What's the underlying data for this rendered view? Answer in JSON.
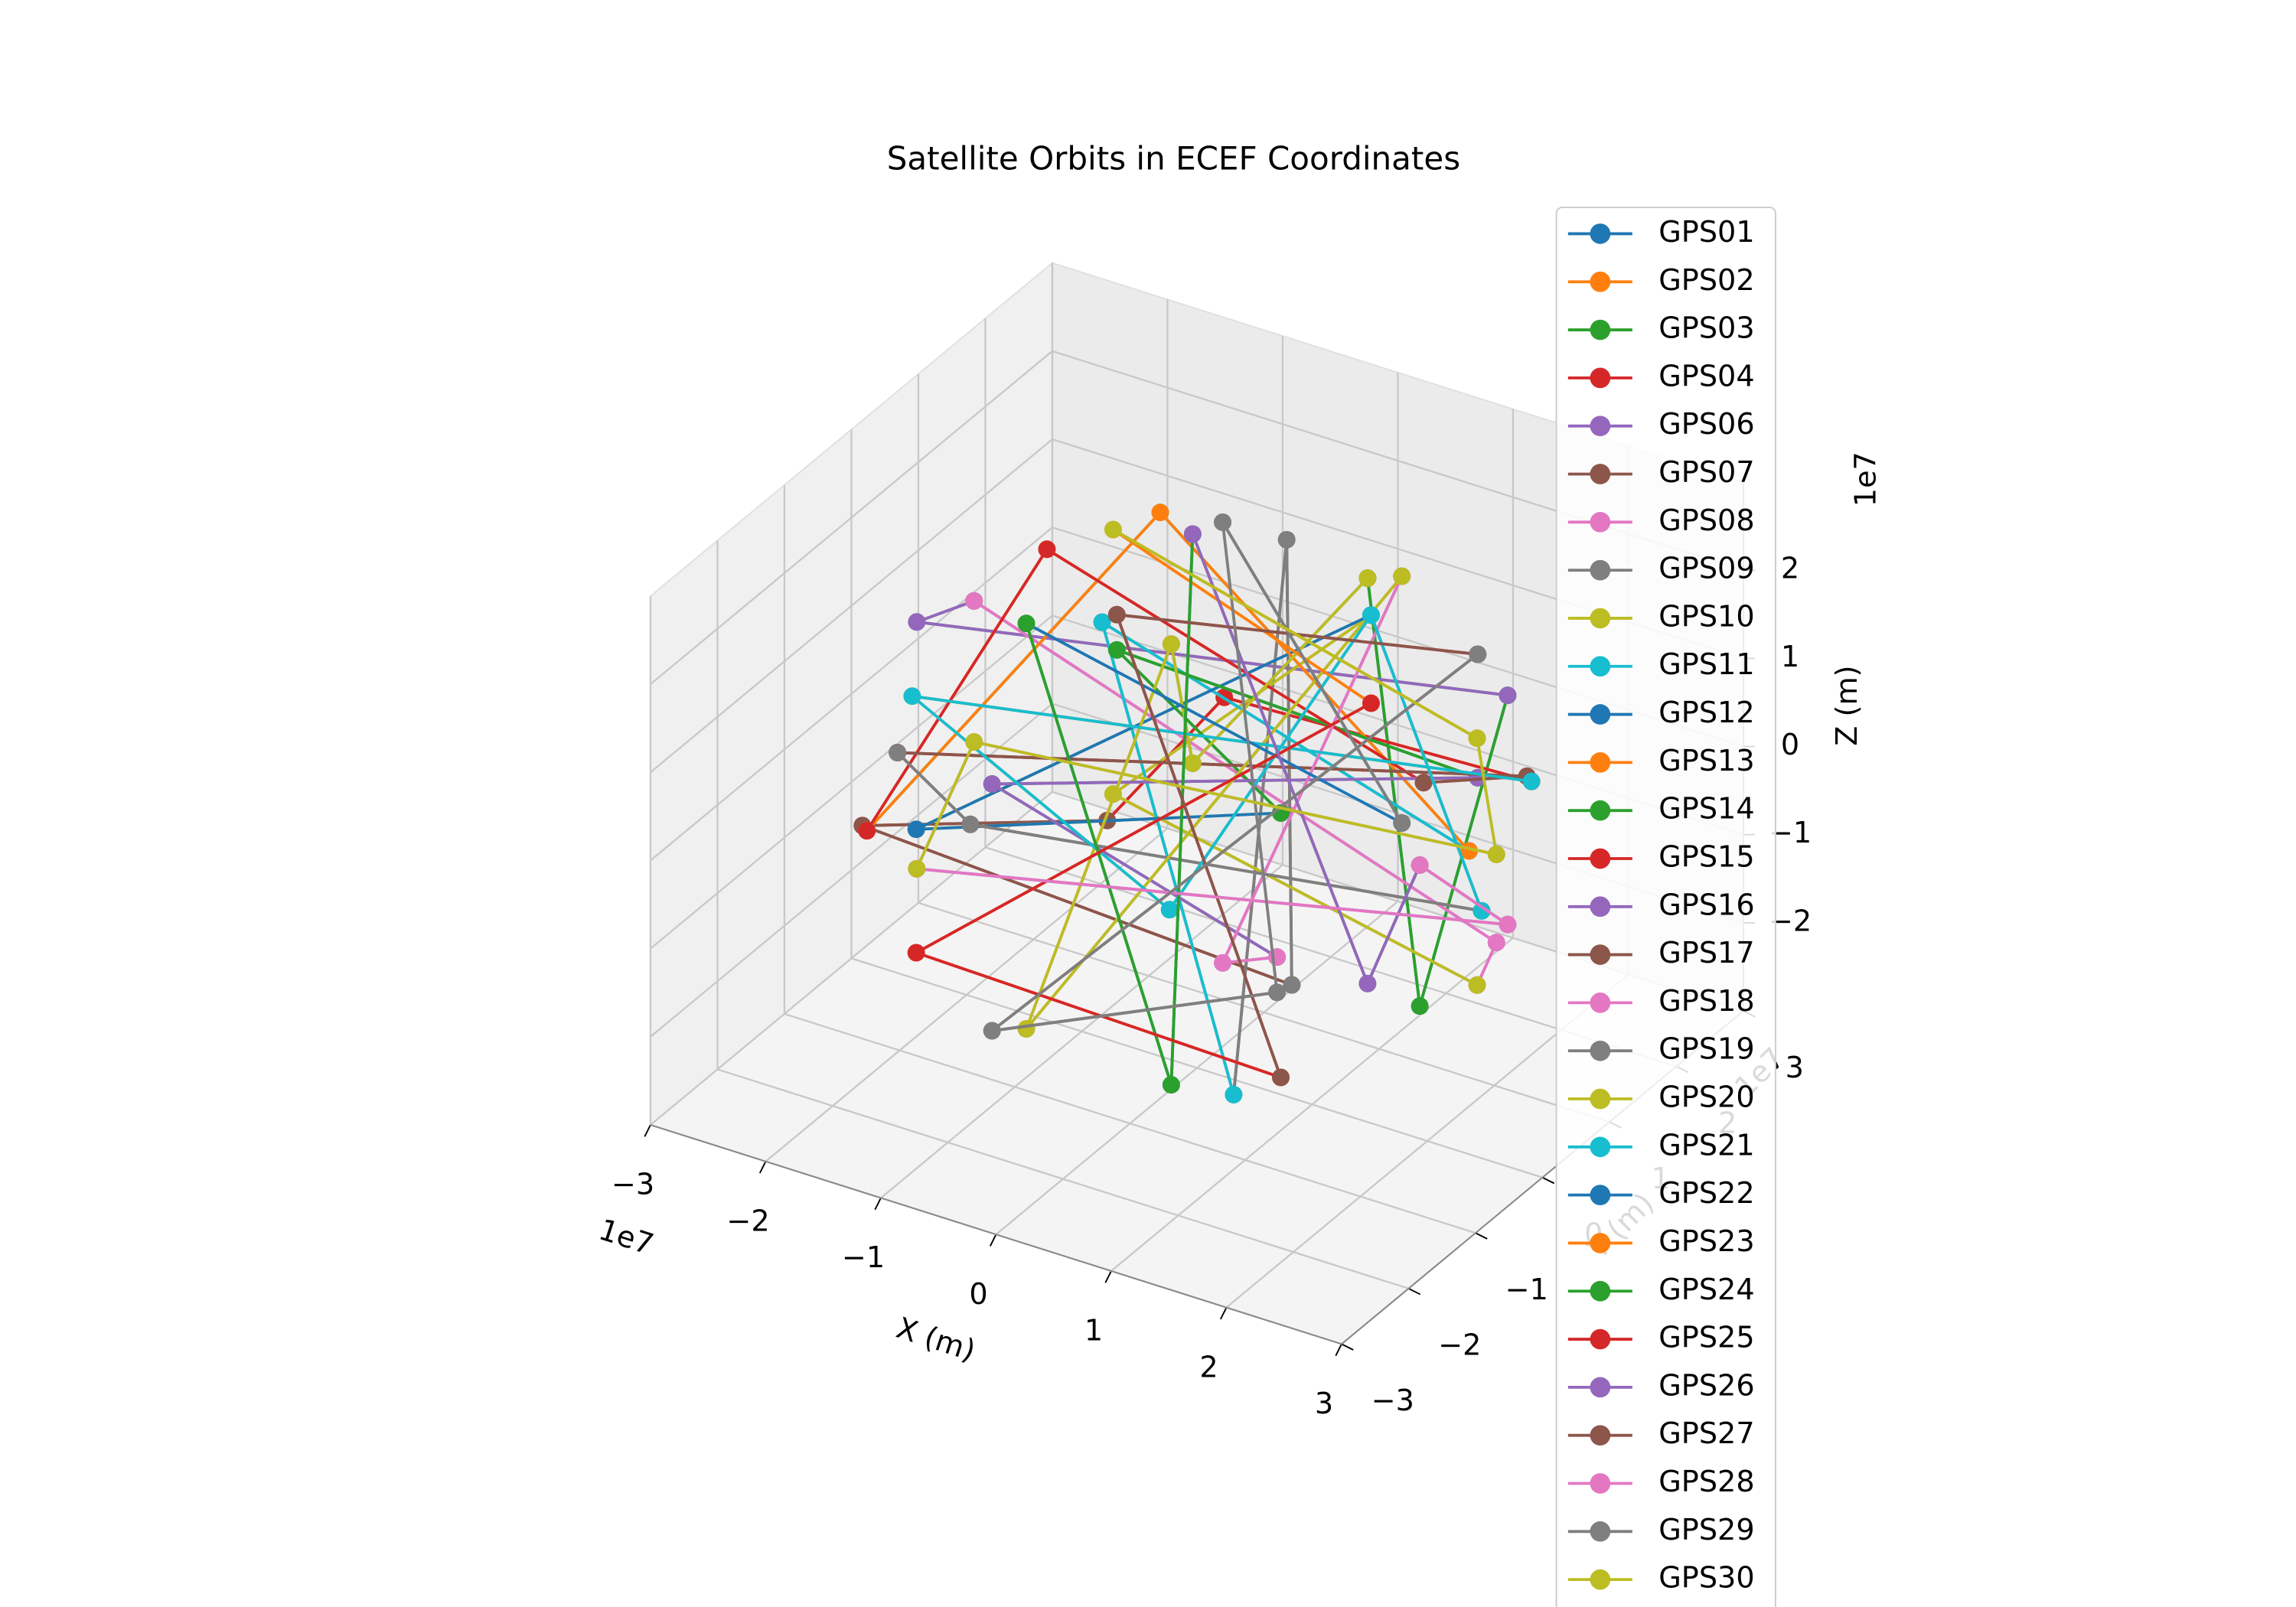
{
  "chart_data": {
    "type": "line3d",
    "title": "Satellite Orbits in ECEF Coordinates",
    "x_label": "X (m)",
    "y_label": "Y (m)",
    "z_label": "Z (m)",
    "x_offset_label": "1e7",
    "y_offset_label": "1e7",
    "z_offset_label": "1e7",
    "xlim": [
      -30000000.0,
      30000000.0
    ],
    "ylim": [
      -30000000.0,
      30000000.0
    ],
    "zlim": [
      -30000000.0,
      30000000.0
    ],
    "xticks": [
      {
        "value": -30000000.0,
        "label": "−3"
      },
      {
        "value": -20000000.0,
        "label": "−2"
      },
      {
        "value": -10000000.0,
        "label": "−1"
      },
      {
        "value": 0,
        "label": "0"
      },
      {
        "value": 10000000.0,
        "label": "1"
      },
      {
        "value": 20000000.0,
        "label": "2"
      },
      {
        "value": 30000000.0,
        "label": "3"
      }
    ],
    "yticks": [
      {
        "value": -30000000.0,
        "label": "−3"
      },
      {
        "value": -20000000.0,
        "label": "−2"
      },
      {
        "value": -10000000.0,
        "label": "−1"
      },
      {
        "value": 0,
        "label": "0"
      },
      {
        "value": 10000000.0,
        "label": "1"
      },
      {
        "value": 20000000.0,
        "label": "2"
      },
      {
        "value": 30000000.0,
        "label": "3"
      }
    ],
    "zticks": [
      {
        "value": -20000000.0,
        "label": "−2"
      },
      {
        "value": -10000000.0,
        "label": "−1"
      },
      {
        "value": 0,
        "label": "0"
      },
      {
        "value": 10000000.0,
        "label": "1"
      },
      {
        "value": 20000000.0,
        "label": "2"
      }
    ],
    "grid": true,
    "series": [
      {
        "name": "GPS01",
        "color": "#1f77b4",
        "x": [
          20000000.0,
          24000000.0,
          9000000.0,
          -12000000.0,
          3000000.0
        ],
        "y": [
          12000000.0,
          -8000000.0,
          10000000.0,
          20000000.0,
          -9000000.0
        ],
        "z": [
          13000000.0,
          -8000000.0,
          23000000.0,
          -13000000.0,
          25000000.0
        ]
      },
      {
        "name": "GPS02",
        "color": "#ff7f0e",
        "x": [
          5000000.0,
          -11000000.0,
          18000000.0,
          -16000000.0,
          11000000.0
        ],
        "y": [
          -22000000.0,
          23000000.0,
          19000000.0,
          -15000000.0,
          -23000000.0
        ],
        "z": [
          14000000.0,
          -7000000.0,
          -2000000.0,
          15000000.0,
          7000000.0
        ]
      },
      {
        "name": "GPS03",
        "color": "#2ca02c",
        "x": [
          -24000000.0,
          -22000000.0,
          20000000.0,
          24000000.0,
          9000000.0
        ],
        "y": [
          8000000.0,
          -4000000.0,
          12000000.0,
          -8000000.0,
          10000000.0
        ],
        "z": [
          8000000.0,
          14000000.0,
          13000000.0,
          -8000000.0,
          23000000.0
        ]
      },
      {
        "name": "GPS04",
        "color": "#d62728",
        "x": [
          3000000.0,
          -18000000.0,
          5000000.0,
          -11000000.0,
          18000000.0
        ],
        "y": [
          9000000.0,
          -19000000.0,
          -22000000.0,
          23000000.0,
          19000000.0
        ],
        "z": [
          -25000000.0,
          2000000.0,
          14000000.0,
          -7000000.0,
          -2000000.0
        ]
      },
      {
        "name": "GPS06",
        "color": "#9467bd",
        "x": [
          22000000.0,
          26000000.0,
          -24000000.0,
          -22000000.0,
          20000000.0
        ],
        "y": [
          4000000.0,
          0,
          8000000.0,
          -4000000.0,
          12000000.0
        ],
        "z": [
          -14000000.0,
          -5000000.0,
          8000000.0,
          14000000.0,
          13000000.0
        ]
      },
      {
        "name": "GPS07",
        "color": "#8c564b",
        "x": [
          9000000.0,
          -5000000.0,
          3000000.0,
          -18000000.0,
          5000000.0
        ],
        "y": [
          -10000000.0,
          22000000.0,
          9000000.0,
          -19000000.0,
          -22000000.0
        ],
        "z": [
          -23000000.0,
          14000000.0,
          -25000000.0,
          2000000.0,
          14000000.0
        ]
      },
      {
        "name": "GPS08",
        "color": "#e377c2",
        "x": [
          0,
          -16000000.0,
          22000000.0,
          26000000.0,
          -24000000.0
        ],
        "y": [
          26000000.0,
          15000000.0,
          4000000.0,
          0,
          8000000.0
        ],
        "z": [
          5000000.0,
          -15000000.0,
          -14000000.0,
          -5000000.0,
          8000000.0
        ]
      },
      {
        "name": "GPS09",
        "color": "#7f7f7f",
        "x": [
          12000000.0,
          -3000000.0,
          9000000.0,
          -5000000.0,
          3000000.0
        ],
        "y": [
          20000000.0,
          -9000000.0,
          -10000000.0,
          22000000.0,
          9000000.0
        ],
        "z": [
          -13000000.0,
          25000000.0,
          -23000000.0,
          14000000.0,
          -25000000.0
        ]
      },
      {
        "name": "GPS10",
        "color": "#bcbd22",
        "x": [
          16000000.0,
          -11000000.0,
          0,
          -16000000.0,
          22000000.0
        ],
        "y": [
          -15000000.0,
          -23000000.0,
          26000000.0,
          15000000.0,
          4000000.0
        ],
        "z": [
          15000000.0,
          7000000.0,
          5000000.0,
          -15000000.0,
          -14000000.0
        ]
      },
      {
        "name": "GPS11",
        "color": "#17becf",
        "x": [
          -24000000.0,
          -9000000.0,
          12000000.0,
          -3000000.0,
          9000000.0
        ],
        "y": [
          -8000000.0,
          10000000.0,
          20000000.0,
          -9000000.0,
          -10000000.0
        ],
        "z": [
          -8000000.0,
          23000000.0,
          -13000000.0,
          25000000.0,
          -23000000.0
        ]
      },
      {
        "name": "GPS12",
        "color": "#1f77b4",
        "x": [
          11000000.0,
          -18000000.0,
          16000000.0,
          -11000000.0,
          0
        ],
        "y": [
          23000000.0,
          19000000.0,
          -15000000.0,
          -23000000.0,
          26000000.0
        ],
        "z": [
          -7000000.0,
          -2000000.0,
          15000000.0,
          7000000.0,
          5000000.0
        ]
      },
      {
        "name": "GPS13",
        "color": "#ff7f0e",
        "x": [
          22000000.0,
          -20000000.0,
          -24000000.0,
          -9000000.0,
          12000000.0
        ],
        "y": [
          -4000000.0,
          12000000.0,
          -8000000.0,
          10000000.0,
          20000000.0
        ],
        "z": [
          14000000.0,
          13000000.0,
          -8000000.0,
          23000000.0,
          -13000000.0
        ]
      },
      {
        "name": "GPS14",
        "color": "#2ca02c",
        "x": [
          18000000.0,
          -5000000.0,
          11000000.0,
          -18000000.0,
          16000000.0
        ],
        "y": [
          -19000000.0,
          -22000000.0,
          23000000.0,
          19000000.0,
          -15000000.0
        ],
        "z": [
          2000000.0,
          14000000.0,
          -7000000.0,
          -2000000.0,
          15000000.0
        ]
      },
      {
        "name": "GPS15",
        "color": "#d62728",
        "x": [
          -26000000.0,
          24000000.0,
          22000000.0,
          -20000000.0,
          -24000000.0
        ],
        "y": [
          0,
          8000000.0,
          -4000000.0,
          12000000.0,
          -8000000.0
        ],
        "z": [
          -5000000.0,
          8000000.0,
          14000000.0,
          13000000.0,
          -8000000.0
        ]
      },
      {
        "name": "GPS16",
        "color": "#9467bd",
        "x": [
          5000000.0,
          -3000000.0,
          18000000.0,
          -5000000.0,
          11000000.0
        ],
        "y": [
          22000000.0,
          9000000.0,
          -19000000.0,
          -22000000.0,
          23000000.0
        ],
        "z": [
          14000000.0,
          -25000000.0,
          2000000.0,
          14000000.0,
          -7000000.0
        ]
      },
      {
        "name": "GPS17",
        "color": "#8c564b",
        "x": [
          16000000.0,
          -22000000.0,
          -26000000.0,
          24000000.0,
          22000000.0
        ],
        "y": [
          15000000.0,
          4000000.0,
          0,
          8000000.0,
          -4000000.0
        ],
        "z": [
          -15000000.0,
          -14000000.0,
          -5000000.0,
          8000000.0,
          14000000.0
        ]
      },
      {
        "name": "GPS18",
        "color": "#e377c2",
        "x": [
          3000000.0,
          -9000000.0,
          5000000.0,
          -3000000.0,
          18000000.0
        ],
        "y": [
          -9000000.0,
          -10000000.0,
          22000000.0,
          9000000.0,
          -19000000.0
        ],
        "z": [
          25000000.0,
          -23000000.0,
          14000000.0,
          -25000000.0,
          2000000.0
        ]
      },
      {
        "name": "GPS19",
        "color": "#7f7f7f",
        "x": [
          11000000.0,
          0,
          16000000.0,
          -22000000.0,
          -26000000.0
        ],
        "y": [
          -23000000.0,
          26000000.0,
          15000000.0,
          4000000.0,
          0
        ],
        "z": [
          7000000.0,
          5000000.0,
          -15000000.0,
          -14000000.0,
          -5000000.0
        ]
      },
      {
        "name": "GPS20",
        "color": "#bcbd22",
        "x": [
          9000000.0,
          -12000000.0,
          3000000.0,
          -9000000.0,
          5000000.0
        ],
        "y": [
          10000000.0,
          20000000.0,
          -9000000.0,
          -10000000.0,
          22000000.0
        ],
        "z": [
          23000000.0,
          -13000000.0,
          25000000.0,
          -23000000.0,
          14000000.0
        ]
      },
      {
        "name": "GPS21",
        "color": "#17becf",
        "x": [
          18000000.0,
          -16000000.0,
          11000000.0,
          0,
          16000000.0
        ],
        "y": [
          19000000.0,
          -15000000.0,
          -23000000.0,
          26000000.0,
          15000000.0
        ],
        "z": [
          -2000000.0,
          15000000.0,
          7000000.0,
          5000000.0,
          -15000000.0
        ]
      },
      {
        "name": "GPS22",
        "color": "#1f77b4",
        "x": [
          -12000000.0,
          3000000.0,
          -9000000.0,
          5000000.0,
          -3000000.0
        ],
        "y": [
          20000000.0,
          -9000000.0,
          -10000000.0,
          22000000.0,
          9000000.0
        ],
        "z": [
          13000000.0,
          -25000000.0,
          23000000.0,
          -14000000.0,
          25000000.0
        ]
      },
      {
        "name": "GPS23",
        "color": "#ff7f0e",
        "x": [
          16000000.0,
          -11000000.0,
          0,
          -16000000.0,
          22000000.0
        ],
        "y": [
          -15000000.0,
          -23000000.0,
          26000000.0,
          15000000.0,
          4000000.0
        ],
        "z": [
          -15000000.0,
          -7000000.0,
          -5000000.0,
          15000000.0,
          14000000.0
        ]
      },
      {
        "name": "GPS24",
        "color": "#2ca02c",
        "x": [
          24000000.0,
          9000000.0,
          -12000000.0,
          3000000.0,
          -9000000.0
        ],
        "y": [
          -8000000.0,
          10000000.0,
          20000000.0,
          -9000000.0,
          -10000000.0
        ],
        "z": [
          8000000.0,
          -23000000.0,
          13000000.0,
          -25000000.0,
          23000000.0
        ]
      },
      {
        "name": "GPS25",
        "color": "#d62728",
        "x": [
          11000000.0,
          -18000000.0,
          16000000.0,
          -11000000.0,
          0
        ],
        "y": [
          23000000.0,
          19000000.0,
          -15000000.0,
          -23000000.0,
          26000000.0
        ],
        "z": [
          7000000.0,
          2000000.0,
          -15000000.0,
          -7000000.0,
          -5000000.0
        ]
      },
      {
        "name": "GPS26",
        "color": "#9467bd",
        "x": [
          -22000000.0,
          20000000.0,
          24000000.0,
          9000000.0,
          -12000000.0
        ],
        "y": [
          -4000000.0,
          12000000.0,
          -8000000.0,
          10000000.0,
          20000000.0
        ],
        "z": [
          -14000000.0,
          -13000000.0,
          8000000.0,
          -23000000.0,
          13000000.0
        ]
      },
      {
        "name": "GPS27",
        "color": "#8c564b",
        "x": [
          18000000.0,
          -5000000.0,
          11000000.0,
          -18000000.0,
          16000000.0
        ],
        "y": [
          -19000000.0,
          -22000000.0,
          23000000.0,
          19000000.0,
          -15000000.0
        ],
        "z": [
          -2000000.0,
          -14000000.0,
          7000000.0,
          2000000.0,
          -15000000.0
        ]
      },
      {
        "name": "GPS28",
        "color": "#e377c2",
        "x": [
          26000000.0,
          -24000000.0,
          -22000000.0,
          20000000.0,
          24000000.0
        ],
        "y": [
          0,
          8000000.0,
          -4000000.0,
          12000000.0,
          -8000000.0
        ],
        "z": [
          5000000.0,
          -8000000.0,
          -14000000.0,
          -13000000.0,
          8000000.0
        ]
      },
      {
        "name": "GPS29",
        "color": "#7f7f7f",
        "x": [
          5000000.0,
          -3000000.0,
          18000000.0,
          -5000000.0,
          11000000.0
        ],
        "y": [
          22000000.0,
          9000000.0,
          -19000000.0,
          -22000000.0,
          23000000.0
        ],
        "z": [
          -14000000.0,
          25000000.0,
          -2000000.0,
          -14000000.0,
          7000000.0
        ]
      },
      {
        "name": "GPS30",
        "color": "#bcbd22",
        "x": [
          -16000000.0,
          22000000.0,
          26000000.0,
          -24000000.0,
          -22000000.0
        ],
        "y": [
          15000000.0,
          4000000.0,
          0,
          8000000.0,
          -4000000.0
        ],
        "z": [
          15000000.0,
          14000000.0,
          5000000.0,
          -8000000.0,
          -14000000.0
        ]
      }
    ]
  }
}
